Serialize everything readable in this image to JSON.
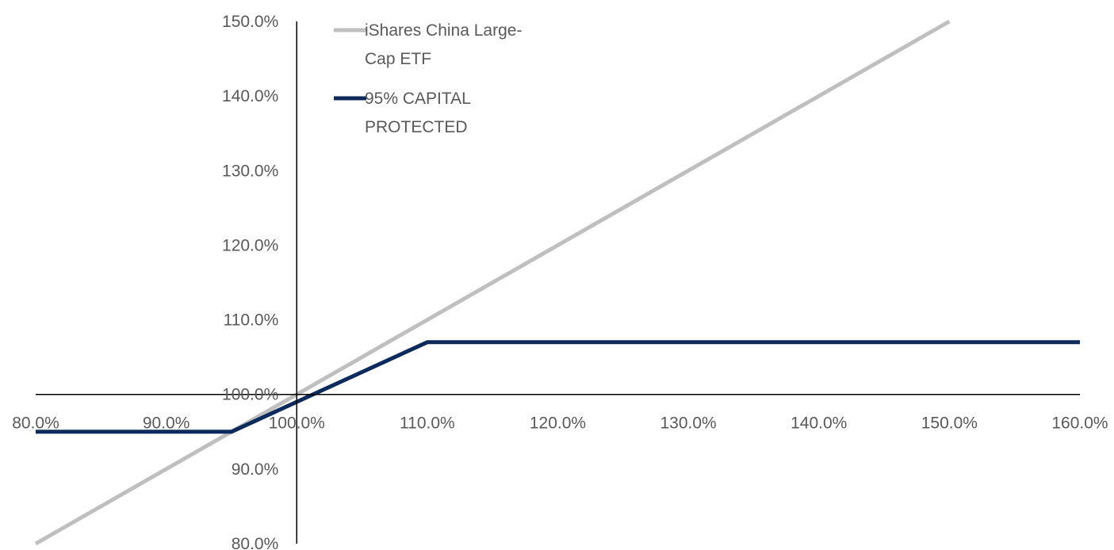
{
  "chart_data": {
    "type": "line",
    "title": "",
    "xlabel": "",
    "ylabel": "",
    "xlim": [
      0.8,
      1.6
    ],
    "ylim": [
      0.8,
      1.5
    ],
    "x_ticks": [
      0.8,
      0.9,
      1.0,
      1.1,
      1.2,
      1.3,
      1.4,
      1.5,
      1.6
    ],
    "x_tick_labels": [
      "80.0%",
      "90.0%",
      "100.0%",
      "110.0%",
      "120.0%",
      "130.0%",
      "140.0%",
      "150.0%",
      "160.0%"
    ],
    "y_ticks": [
      0.8,
      0.9,
      1.0,
      1.1,
      1.2,
      1.3,
      1.4,
      1.5
    ],
    "y_tick_labels": [
      "80.0%",
      "90.0%",
      "100.0%",
      "110.0%",
      "120.0%",
      "130.0%",
      "140.0%",
      "150.0%"
    ],
    "axes_cross_at": [
      1.0,
      1.0
    ],
    "grid": false,
    "legend_position": "top-left",
    "series": [
      {
        "name": "iShares China Large-Cap ETF",
        "legend_lines": [
          "iShares China Large-",
          "Cap ETF"
        ],
        "color": "#bfbfbf",
        "x": [
          0.8,
          1.5
        ],
        "y": [
          0.8,
          1.5
        ]
      },
      {
        "name": "95% CAPITAL PROTECTED",
        "legend_lines": [
          "95% CAPITAL",
          "PROTECTED"
        ],
        "color": "#0d2a5c",
        "x": [
          0.8,
          0.95,
          1.1,
          1.6
        ],
        "y": [
          0.95,
          0.95,
          1.07,
          1.07
        ]
      }
    ]
  }
}
